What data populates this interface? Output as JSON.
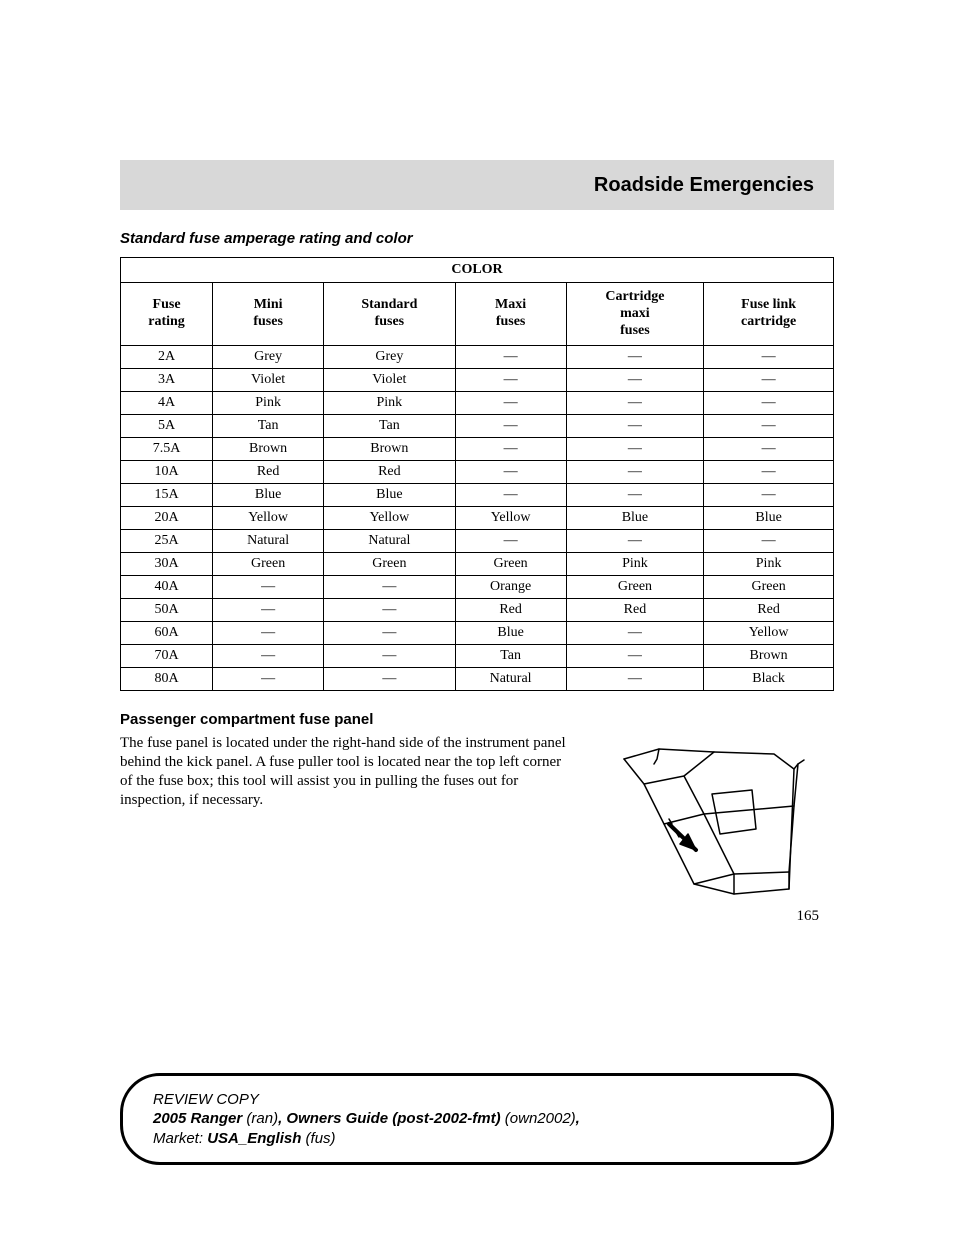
{
  "header": {
    "title": "Roadside Emergencies"
  },
  "section1": {
    "heading": "Standard fuse amperage rating and color"
  },
  "table": {
    "topHeader": "COLOR",
    "columns": [
      "Fuse\nrating",
      "Mini\nfuses",
      "Standard\nfuses",
      "Maxi\nfuses",
      "Cartridge\nmaxi\nfuses",
      "Fuse link\ncartridge"
    ],
    "rows": [
      [
        "2A",
        "Grey",
        "Grey",
        "—",
        "—",
        "—"
      ],
      [
        "3A",
        "Violet",
        "Violet",
        "—",
        "—",
        "—"
      ],
      [
        "4A",
        "Pink",
        "Pink",
        "—",
        "—",
        "—"
      ],
      [
        "5A",
        "Tan",
        "Tan",
        "—",
        "—",
        "—"
      ],
      [
        "7.5A",
        "Brown",
        "Brown",
        "—",
        "—",
        "—"
      ],
      [
        "10A",
        "Red",
        "Red",
        "—",
        "—",
        "—"
      ],
      [
        "15A",
        "Blue",
        "Blue",
        "—",
        "—",
        "—"
      ],
      [
        "20A",
        "Yellow",
        "Yellow",
        "Yellow",
        "Blue",
        "Blue"
      ],
      [
        "25A",
        "Natural",
        "Natural",
        "—",
        "—",
        "—"
      ],
      [
        "30A",
        "Green",
        "Green",
        "Green",
        "Pink",
        "Pink"
      ],
      [
        "40A",
        "—",
        "—",
        "Orange",
        "Green",
        "Green"
      ],
      [
        "50A",
        "—",
        "—",
        "Red",
        "Red",
        "Red"
      ],
      [
        "60A",
        "—",
        "—",
        "Blue",
        "—",
        "Yellow"
      ],
      [
        "70A",
        "—",
        "—",
        "Tan",
        "—",
        "Brown"
      ],
      [
        "80A",
        "—",
        "—",
        "Natural",
        "—",
        "Black"
      ]
    ]
  },
  "section2": {
    "heading": "Passenger compartment fuse panel",
    "body": "The fuse panel is located under the right-hand side of the instrument panel behind the kick panel. A fuse puller tool is located near the top left corner of the fuse box; this tool will assist you in pulling the fuses out for inspection, if necessary."
  },
  "pageNumber": "165",
  "footer": {
    "line1a": "REVIEW COPY",
    "line2a": "2005 Ranger ",
    "line2b": "(ran)",
    "line2c": ", ",
    "line2d": "Owners Guide (post-2002-fmt) ",
    "line2e": "(own2002)",
    "line2f": ",",
    "line3a": "Market: ",
    "line3b": "USA_English ",
    "line3c": "(fus)"
  },
  "styling": {
    "headerBg": "#d8d8d8",
    "bodyBg": "#ffffff",
    "borderColor": "#000000",
    "bodyFontSize": 15,
    "tableFontSize": 14
  }
}
